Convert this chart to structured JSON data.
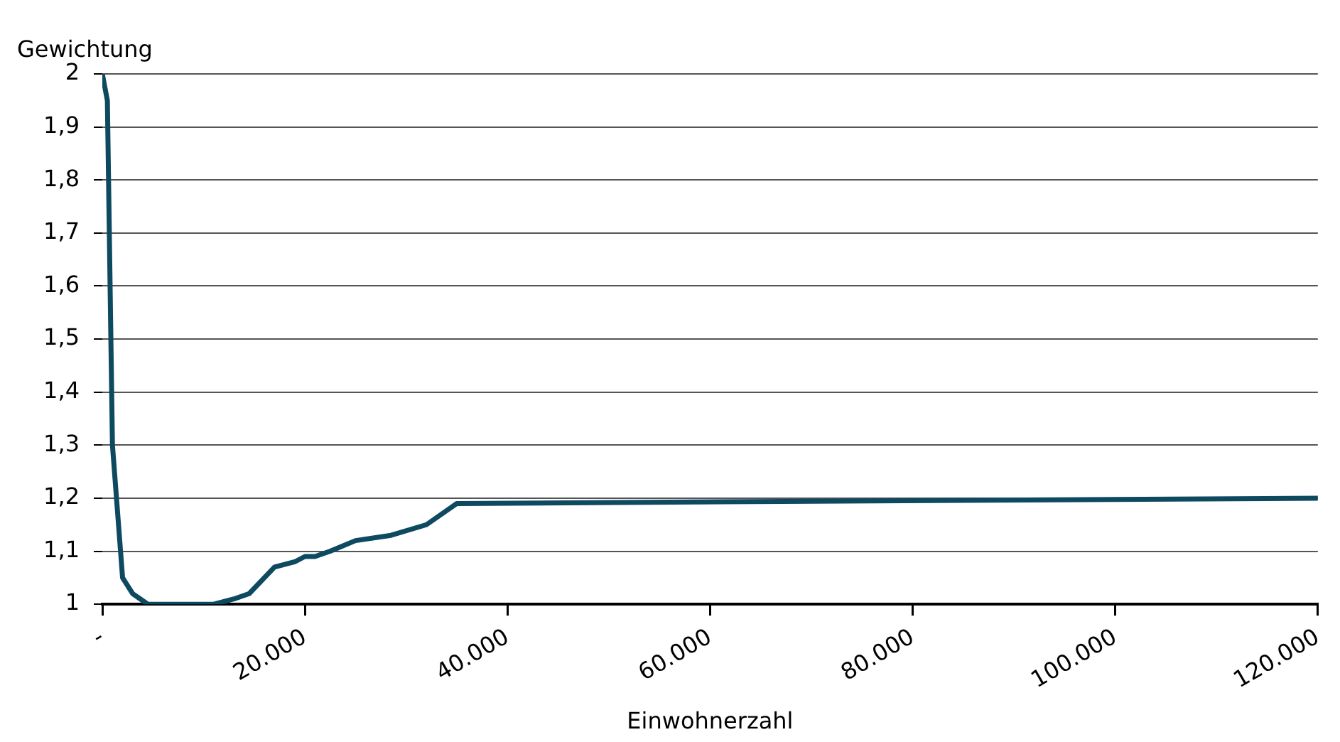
{
  "chart_data": {
    "type": "line",
    "ylabel": "Gewichtung",
    "xlabel": "Einwohnerzahl",
    "series": [
      {
        "color": "#0d4a60",
        "x": [
          0,
          500,
          1000,
          2000,
          3000,
          4500,
          11000,
          13000,
          14500,
          17000,
          19000,
          20000,
          21000,
          22500,
          25000,
          28500,
          32000,
          35000,
          120000
        ],
        "values": [
          2,
          1.95,
          1.3,
          1.05,
          1.02,
          1,
          1,
          1.01,
          1.02,
          1.07,
          1.08,
          1.09,
          1.09,
          1.1,
          1.12,
          1.13,
          1.15,
          1.19,
          1.2
        ]
      }
    ],
    "xlim": [
      0,
      120000
    ],
    "xticks": [
      {
        "value": 0,
        "label": "-"
      },
      {
        "value": 20000,
        "label": "20.000"
      },
      {
        "value": 40000,
        "label": "40.000"
      },
      {
        "value": 60000,
        "label": "60.000"
      },
      {
        "value": 80000,
        "label": "80.000"
      },
      {
        "value": 100000,
        "label": "100.000"
      },
      {
        "value": 120000,
        "label": "120.000"
      }
    ],
    "ylim": [
      1,
      2
    ],
    "yticks": [
      1,
      {
        "value": 1.1,
        "label": "1,1"
      },
      {
        "value": 1.2,
        "label": "1,2"
      },
      {
        "value": 1.3,
        "label": "1,3"
      },
      {
        "value": 1.4,
        "label": "1,4"
      },
      {
        "value": 1.5,
        "label": "1,5"
      },
      {
        "value": 1.6,
        "label": "1,6"
      },
      {
        "value": 1.7,
        "label": "1,7"
      },
      {
        "value": 1.8,
        "label": "1,8"
      },
      {
        "value": 1.9,
        "label": "1,9"
      },
      2
    ],
    "grid": "y",
    "legend": false,
    "marker": "none",
    "line_style": "solid"
  }
}
